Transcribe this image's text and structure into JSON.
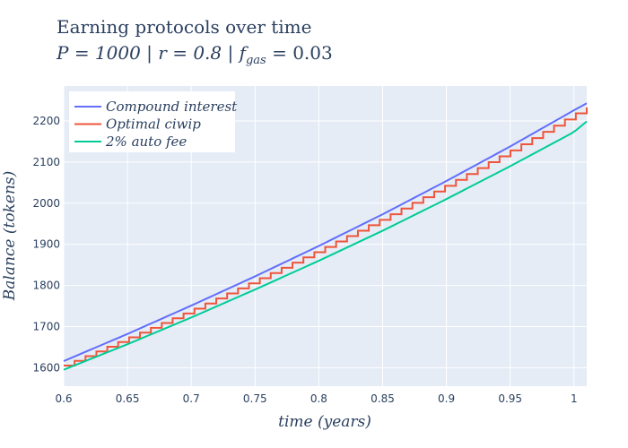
{
  "chart_data": {
    "type": "line",
    "title": "Earning protocols over time",
    "subtitle_parts": {
      "p_part": "P = 1000",
      "sep1": " | ",
      "r_part": "r = 0.8",
      "sep2": " | ",
      "f_sym": "f",
      "f_sub": "gas",
      "f_val": " = 0.03"
    },
    "xlabel": "time (years)",
    "ylabel": "Balance (tokens)",
    "xlim": [
      0.6,
      1.01
    ],
    "ylim": [
      1555,
      2285
    ],
    "xticks": [
      0.6,
      0.65,
      0.7,
      0.75,
      0.8,
      0.85,
      0.9,
      0.95,
      1
    ],
    "xtick_labels": [
      "0.6",
      "0.65",
      "0.7",
      "0.75",
      "0.8",
      "0.85",
      "0.9",
      "0.95",
      "1"
    ],
    "yticks": [
      1600,
      1700,
      1800,
      1900,
      2000,
      2100,
      2200
    ],
    "ytick_labels": [
      "1600",
      "1700",
      "1800",
      "1900",
      "2000",
      "2100",
      "2200"
    ],
    "grid": true,
    "legend_position": "top-left",
    "params": {
      "P": 1000,
      "r": 0.8,
      "f_gas": 0.03
    },
    "series": [
      {
        "name": "Compound interest",
        "color": "#636efa",
        "style": "smooth",
        "x": [
          0.6,
          0.65,
          0.7,
          0.75,
          0.8,
          0.85,
          0.9,
          0.95,
          1.0,
          1.01
        ],
        "y": [
          1616,
          1682,
          1751,
          1822,
          1896,
          1973,
          2054,
          2138,
          2226,
          2243
        ]
      },
      {
        "name": "Optimal ciwip",
        "color": "#ef553b",
        "style": "step",
        "x": [
          0.6,
          0.65,
          0.7,
          0.75,
          0.8,
          0.85,
          0.9,
          0.95,
          1.0,
          1.01
        ],
        "y": [
          1605,
          1672,
          1740,
          1812,
          1886,
          1963,
          2044,
          2128,
          2216,
          2233
        ],
        "step_count": 48
      },
      {
        "name": "2% auto fee",
        "color": "#00cc96",
        "style": "smooth",
        "x": [
          0.6,
          0.65,
          0.7,
          0.75,
          0.8,
          0.85,
          0.9,
          0.95,
          1.0,
          1.01
        ],
        "y": [
          1595,
          1657,
          1722,
          1790,
          1860,
          1933,
          2010,
          2090,
          2173,
          2199
        ]
      }
    ],
    "colors": {
      "plot_bg": "#e5ecf6",
      "grid": "#ffffff",
      "text": "#2a3f5f",
      "legend_bg": "#ffffff"
    }
  }
}
